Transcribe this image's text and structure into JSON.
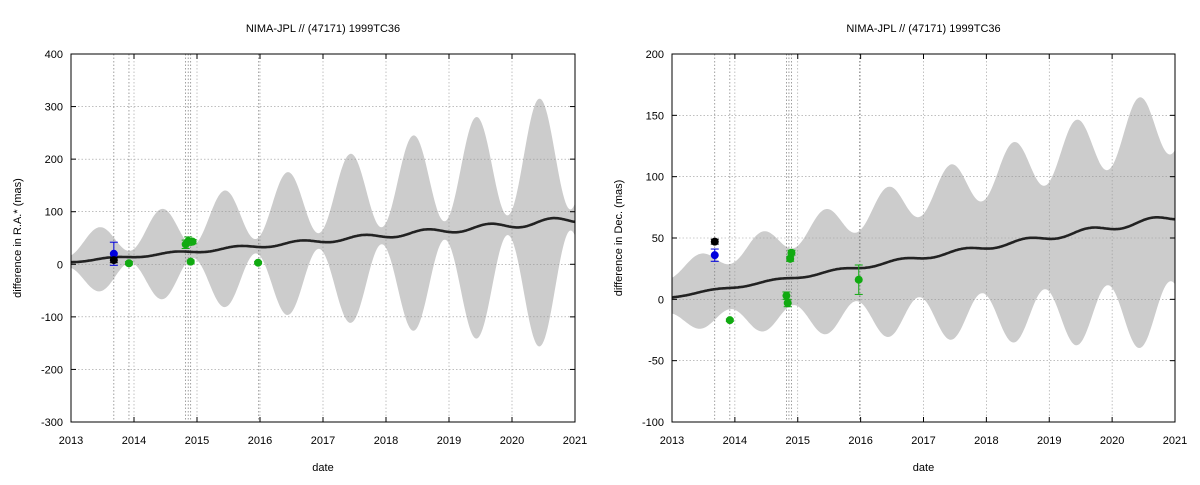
{
  "colors": {
    "band": "#cccccc",
    "model": "#222222",
    "obs_black": "#000000",
    "obs_blue": "#0000dd",
    "obs_green": "#11aa11",
    "grid": "#999999"
  },
  "chart_data": [
    {
      "type": "line",
      "title": "NIMA-JPL // (47171) 1999TC36",
      "xlabel": "date",
      "ylabel": "difference in R.A.* (mas)",
      "xlim": [
        2013,
        2021
      ],
      "ylim": [
        -300,
        400
      ],
      "xticks": [
        2013,
        2014,
        2015,
        2016,
        2017,
        2018,
        2019,
        2020,
        2021
      ],
      "yticks": [
        -300,
        -200,
        -100,
        0,
        100,
        200,
        300,
        400
      ],
      "grid": true,
      "vlines": [
        2013.68,
        2013.92,
        2014.82,
        2014.86,
        2014.9,
        2015.98
      ],
      "band": {
        "trend_start": 5,
        "trend_end": 85,
        "halfwidth_start": 30,
        "halfwidth_end": 135,
        "osc_amp_start": 20,
        "osc_amp_end": 115,
        "phase_year": 0.18
      },
      "model": {
        "start": 5,
        "end": 85,
        "wiggle": 5
      },
      "observations": [
        {
          "x": 2013.68,
          "y": 20,
          "err": 22,
          "color": "blue"
        },
        {
          "x": 2013.68,
          "y": 8,
          "err": 5,
          "color": "black"
        },
        {
          "x": 2013.92,
          "y": 2,
          "err": 3,
          "color": "green"
        },
        {
          "x": 2014.82,
          "y": 38,
          "err": 8,
          "color": "green"
        },
        {
          "x": 2014.86,
          "y": 44,
          "err": 8,
          "color": "green"
        },
        {
          "x": 2014.93,
          "y": 43,
          "err": 4,
          "color": "green"
        },
        {
          "x": 2014.9,
          "y": 5,
          "err": 3,
          "color": "green"
        },
        {
          "x": 2015.97,
          "y": 3,
          "err": 2,
          "color": "green"
        }
      ]
    },
    {
      "type": "line",
      "title": "NIMA-JPL // (47171) 1999TC36",
      "xlabel": "date",
      "ylabel": "difference in Dec. (mas)",
      "xlim": [
        2013,
        2021
      ],
      "ylim": [
        -100,
        200
      ],
      "xticks": [
        2013,
        2014,
        2015,
        2016,
        2017,
        2018,
        2019,
        2020,
        2021
      ],
      "yticks": [
        -100,
        -50,
        0,
        50,
        100,
        150,
        200
      ],
      "grid": true,
      "vlines": [
        2013.68,
        2013.92,
        2014.82,
        2014.86,
        2014.9,
        2015.98
      ],
      "band": {
        "trend_start": 3,
        "trend_end": 67,
        "halfwidth_start": 20,
        "halfwidth_end": 80,
        "osc_amp_start": 6,
        "osc_amp_end": 28,
        "phase_year": 0.18
      },
      "model": {
        "start": 2,
        "end": 67,
        "wiggle": 2
      },
      "observations": [
        {
          "x": 2013.68,
          "y": 47,
          "err": 2,
          "color": "black"
        },
        {
          "x": 2013.68,
          "y": 36,
          "err": 5,
          "color": "blue"
        },
        {
          "x": 2013.92,
          "y": -17,
          "err": 1,
          "color": "green"
        },
        {
          "x": 2014.82,
          "y": 3,
          "err": 3,
          "color": "green"
        },
        {
          "x": 2014.84,
          "y": -3,
          "err": 3,
          "color": "green"
        },
        {
          "x": 2014.88,
          "y": 33,
          "err": 2,
          "color": "green"
        },
        {
          "x": 2014.9,
          "y": 38,
          "err": 2,
          "color": "green"
        },
        {
          "x": 2015.97,
          "y": 16,
          "err": 12,
          "color": "green"
        }
      ]
    }
  ]
}
